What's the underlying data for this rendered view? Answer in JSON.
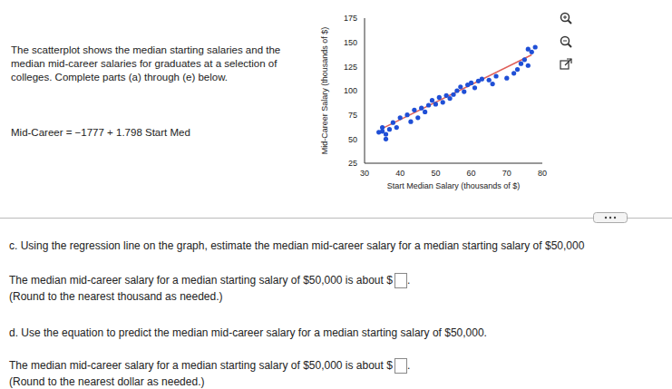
{
  "problem": {
    "intro": "The scatterplot shows the median starting salaries and the median mid-career salaries for graduates at a selection of colleges. Complete parts (a) through (e) below.",
    "equation": "Mid-Career = −1777 + 1.798 Start Med"
  },
  "chart_data": {
    "type": "scatter",
    "xlabel": "Start Median Salary (thousands of $)",
    "ylabel": "Mid-Career Salary (thousands of $)",
    "x": [
      34,
      35,
      35,
      36,
      36,
      37,
      38,
      39,
      40,
      42,
      43,
      44,
      45,
      46,
      47,
      48,
      49,
      50,
      51,
      52,
      53,
      54,
      55,
      56,
      57,
      58,
      59,
      60,
      61,
      62,
      63,
      65,
      66,
      67,
      70,
      72,
      73,
      74,
      75,
      76,
      77,
      78,
      76
    ],
    "values": [
      57,
      62,
      58,
      55,
      50,
      60,
      67,
      62,
      72,
      75,
      68,
      80,
      72,
      82,
      78,
      85,
      90,
      86,
      93,
      88,
      95,
      92,
      96,
      100,
      104,
      99,
      106,
      108,
      103,
      110,
      112,
      111,
      107,
      115,
      113,
      118,
      122,
      128,
      132,
      126,
      140,
      145,
      143
    ],
    "color": "#1f4fd6",
    "marker": "circle",
    "xlim": [
      30,
      80
    ],
    "xticks": [
      30,
      40,
      50,
      60,
      70,
      80
    ],
    "ylim": [
      25,
      175
    ],
    "yticks": [
      25,
      50,
      75,
      100,
      125,
      150,
      175
    ],
    "grid": false,
    "regression_line": {
      "x": [
        35,
        77
      ],
      "values": [
        61,
        137
      ],
      "color": "#e0605a"
    }
  },
  "parts": [
    {
      "question": "c. Using the regression line on the graph, estimate the median mid-career salary for a median starting salary of $50,000",
      "answer": "The median mid-career salary for a median starting salary of $50,000 is about",
      "currency": "$",
      "end": ".",
      "note": "(Round to the nearest thousand as needed.)"
    },
    {
      "question": "d. Use the equation to predict the median mid-career salary for a median starting salary of $50,000.",
      "answer": "The median mid-career salary for a median starting salary of $50,000 is about",
      "currency": "$",
      "end": ".",
      "note": "(Round to the nearest dollar as needed.)"
    }
  ]
}
